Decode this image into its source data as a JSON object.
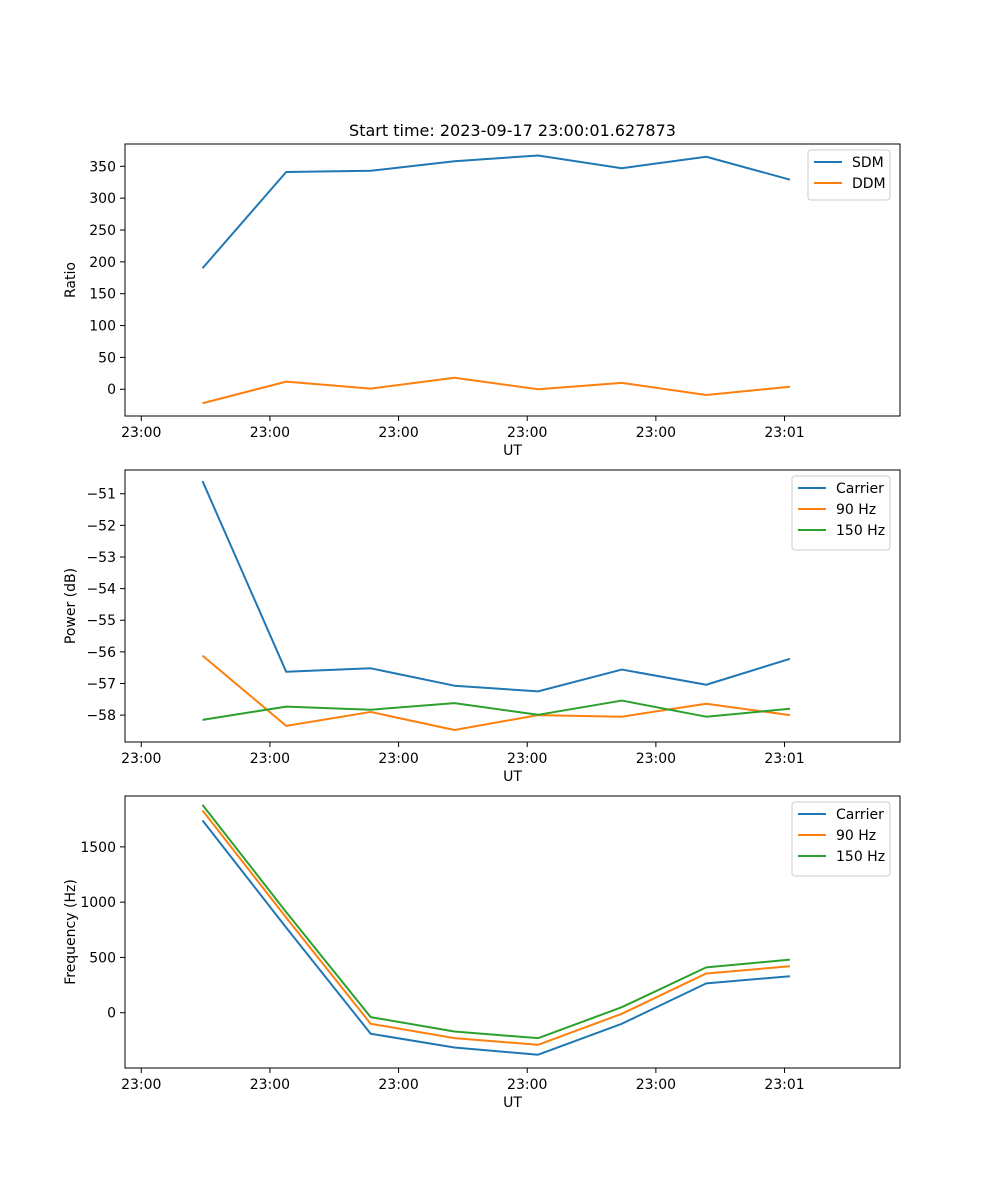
{
  "colors": {
    "c0": "#1f77b4",
    "c1": "#ff7f0e",
    "c2": "#2ca02c"
  },
  "chart_data": [
    {
      "type": "line",
      "title": "Start time: 2023-09-17 23:00:01.627873",
      "xlabel": "UT",
      "ylabel": "Ratio",
      "xlim": [
        -0.5,
        9.5
      ],
      "xticks": [
        {
          "v": -0.29,
          "label": "23:00"
        },
        {
          "v": 1.37,
          "label": "23:00"
        },
        {
          "v": 3.03,
          "label": "23:00"
        },
        {
          "v": 4.69,
          "label": "23:00"
        },
        {
          "v": 6.35,
          "label": "23:00"
        },
        {
          "v": 8.01,
          "label": "23:01"
        }
      ],
      "ylim": [
        -42,
        385
      ],
      "yticks": [
        {
          "v": 0,
          "label": "0"
        },
        {
          "v": 50,
          "label": "50"
        },
        {
          "v": 100,
          "label": "100"
        },
        {
          "v": 150,
          "label": "150"
        },
        {
          "v": 200,
          "label": "200"
        },
        {
          "v": 250,
          "label": "250"
        },
        {
          "v": 300,
          "label": "300"
        },
        {
          "v": 350,
          "label": "350"
        }
      ],
      "x": [
        0.5,
        1.58,
        2.67,
        3.75,
        4.83,
        5.91,
        7.0,
        8.08
      ],
      "series": [
        {
          "name": "SDM",
          "color": "#1f77b4",
          "values": [
            190,
            341,
            343,
            358,
            367,
            347,
            365,
            329
          ]
        },
        {
          "name": "DDM",
          "color": "#ff7f0e",
          "values": [
            -22,
            12,
            1,
            18,
            0,
            10,
            -9,
            4
          ]
        }
      ]
    },
    {
      "type": "line",
      "xlabel": "UT",
      "ylabel": "Power (dB)",
      "xlim": [
        -0.5,
        9.5
      ],
      "xticks": [
        {
          "v": -0.29,
          "label": "23:00"
        },
        {
          "v": 1.37,
          "label": "23:00"
        },
        {
          "v": 3.03,
          "label": "23:00"
        },
        {
          "v": 4.69,
          "label": "23:00"
        },
        {
          "v": 6.35,
          "label": "23:00"
        },
        {
          "v": 8.01,
          "label": "23:01"
        }
      ],
      "ylim": [
        -58.85,
        -50.25
      ],
      "yticks": [
        {
          "v": -58,
          "label": "−58"
        },
        {
          "v": -57,
          "label": "−57"
        },
        {
          "v": -56,
          "label": "−56"
        },
        {
          "v": -55,
          "label": "−55"
        },
        {
          "v": -54,
          "label": "−54"
        },
        {
          "v": -53,
          "label": "−53"
        },
        {
          "v": -52,
          "label": "−52"
        },
        {
          "v": -51,
          "label": "−51"
        }
      ],
      "x": [
        0.5,
        1.58,
        2.67,
        3.75,
        4.83,
        5.91,
        7.0,
        8.08
      ],
      "series": [
        {
          "name": "Carrier",
          "color": "#1f77b4",
          "values": [
            -50.6,
            -56.63,
            -56.52,
            -57.07,
            -57.25,
            -56.56,
            -57.04,
            -56.22
          ]
        },
        {
          "name": "90 Hz",
          "color": "#ff7f0e",
          "values": [
            -56.12,
            -58.34,
            -57.9,
            -58.47,
            -58.0,
            -58.05,
            -57.64,
            -58.0
          ]
        },
        {
          "name": "150 Hz",
          "color": "#2ca02c",
          "values": [
            -58.15,
            -57.73,
            -57.83,
            -57.62,
            -57.99,
            -57.54,
            -58.05,
            -57.8
          ]
        }
      ]
    },
    {
      "type": "line",
      "xlabel": "UT",
      "ylabel": "Frequency (Hz)",
      "xlim": [
        -0.5,
        9.5
      ],
      "xticks": [
        {
          "v": -0.29,
          "label": "23:00"
        },
        {
          "v": 1.37,
          "label": "23:00"
        },
        {
          "v": 3.03,
          "label": "23:00"
        },
        {
          "v": 4.69,
          "label": "23:00"
        },
        {
          "v": 6.35,
          "label": "23:00"
        },
        {
          "v": 8.01,
          "label": "23:01"
        }
      ],
      "ylim": [
        -500,
        1960
      ],
      "yticks": [
        {
          "v": 0,
          "label": "0"
        },
        {
          "v": 500,
          "label": "500"
        },
        {
          "v": 1000,
          "label": "1000"
        },
        {
          "v": 1500,
          "label": "1500"
        }
      ],
      "x": [
        0.5,
        1.58,
        2.67,
        3.75,
        4.83,
        5.91,
        7.0,
        8.08
      ],
      "series": [
        {
          "name": "Carrier",
          "color": "#1f77b4",
          "values": [
            1740,
            770,
            -190,
            -315,
            -380,
            -100,
            265,
            330
          ]
        },
        {
          "name": "90 Hz",
          "color": "#ff7f0e",
          "values": [
            1830,
            860,
            -100,
            -230,
            -290,
            -10,
            355,
            420
          ]
        },
        {
          "name": "150 Hz",
          "color": "#2ca02c",
          "values": [
            1880,
            910,
            -40,
            -170,
            -230,
            50,
            410,
            480
          ]
        }
      ]
    }
  ]
}
